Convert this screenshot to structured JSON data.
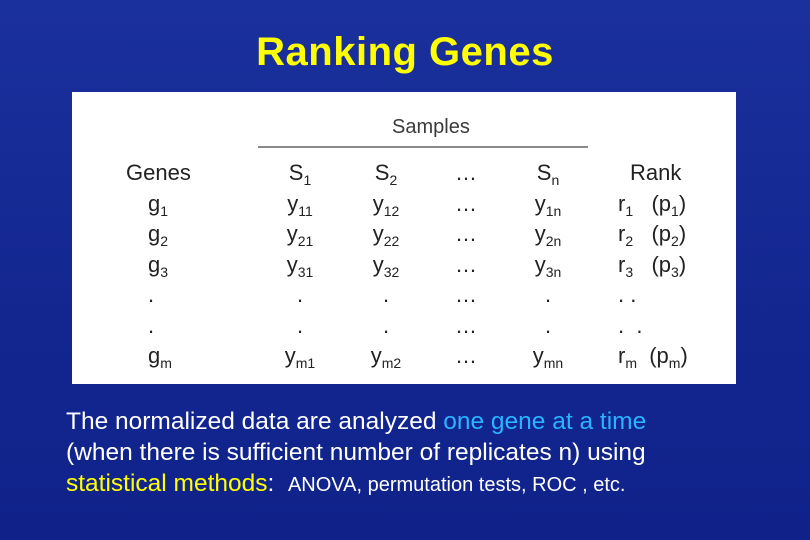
{
  "title": "Ranking Genes",
  "table": {
    "samples_label": "Samples",
    "genes_header": "Genes",
    "genes": [
      {
        "base": "g",
        "sub": "1"
      },
      {
        "base": "g",
        "sub": "2"
      },
      {
        "base": "g",
        "sub": "3"
      },
      {
        "base": ".",
        "sub": ""
      },
      {
        "base": ".",
        "sub": ""
      },
      {
        "base": "g",
        "sub": "m"
      }
    ],
    "s1": {
      "header_base": "S",
      "header_sub": "1",
      "cells": [
        {
          "base": "y",
          "sub": "11"
        },
        {
          "base": "y",
          "sub": "21"
        },
        {
          "base": "y",
          "sub": "31"
        },
        {
          "base": ".",
          "sub": ""
        },
        {
          "base": ".",
          "sub": ""
        },
        {
          "base": "y",
          "sub": "m1"
        }
      ]
    },
    "s2": {
      "header_base": "S",
      "header_sub": "2",
      "cells": [
        {
          "base": "y",
          "sub": "12"
        },
        {
          "base": "y",
          "sub": "22"
        },
        {
          "base": "y",
          "sub": "32"
        },
        {
          "base": ".",
          "sub": ""
        },
        {
          "base": ".",
          "sub": ""
        },
        {
          "base": "y",
          "sub": "m2"
        }
      ]
    },
    "dots": {
      "header": "…",
      "cells": [
        "…",
        "…",
        "…",
        "…",
        "…",
        "…"
      ]
    },
    "sn": {
      "header_base": "S",
      "header_sub": "n",
      "cells": [
        {
          "base": "y",
          "sub": "1n"
        },
        {
          "base": "y",
          "sub": "2n"
        },
        {
          "base": "y",
          "sub": "3n"
        },
        {
          "base": ".",
          "sub": ""
        },
        {
          "base": ".",
          "sub": ""
        },
        {
          "base": "y",
          "sub": "mn"
        }
      ]
    },
    "rank": {
      "header": "Rank",
      "cells": [
        {
          "r": "r",
          "rsub": "1",
          "p": "(p",
          "psub": "1",
          "close": ")"
        },
        {
          "r": "r",
          "rsub": "2",
          "p": "(p",
          "psub": "2",
          "close": ")"
        },
        {
          "r": "r",
          "rsub": "3",
          "p": "(p",
          "psub": "3",
          "close": ")"
        },
        {
          "r": ". .",
          "rsub": "",
          "p": "",
          "psub": "",
          "close": ""
        },
        {
          "r": ".  .",
          "rsub": "",
          "p": "",
          "psub": "",
          "close": ""
        },
        {
          "r": "r",
          "rsub": "m",
          "p": "(p",
          "psub": "m",
          "close": ")"
        }
      ]
    }
  },
  "body": {
    "line1_a": "The normalized data are analyzed ",
    "line1_b": "one gene at a time",
    "line2": "(when there is sufficient number of replicates n) using",
    "line3_a": "statistical methods",
    "line3_b": ":  ",
    "line3_c": "ANOVA, permutation tests, ROC , etc."
  },
  "colors": {
    "background": "#162b93",
    "title": "#ffff00",
    "highlight_blue": "#2ab4ff",
    "highlight_yellow": "#ffff00",
    "body_text": "#ffffff"
  }
}
